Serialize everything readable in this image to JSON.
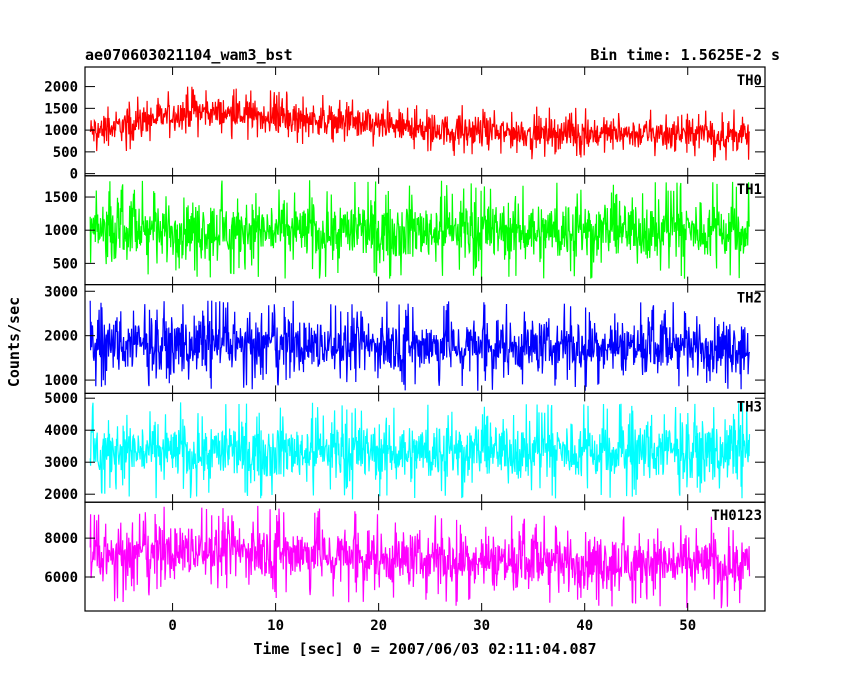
{
  "chart_data": {
    "type": "line",
    "title": "ae070603021104_wam3_bst",
    "bin_time_label": "Bin time: 1.5625E-2 s",
    "xlabel": "Time [sec] 0 = 2007/06/03 02:11:04.087",
    "ylabel": "Counts/sec",
    "xlim": [
      -8.5,
      57.5
    ],
    "x_data_range": [
      -8,
      56
    ],
    "x_ticks": [
      0,
      10,
      20,
      30,
      40,
      50
    ],
    "x_tick_labels": [
      "0",
      "10",
      "20",
      "30",
      "40",
      "50"
    ],
    "grid": false,
    "panels": [
      {
        "name": "TH0",
        "color": "#ff0000",
        "ylim": [
          -50,
          2450
        ],
        "y_ticks": [
          0,
          500,
          1000,
          1500,
          2000
        ],
        "y_tick_labels": [
          "0",
          "500",
          "1000",
          "1500",
          "2000"
        ],
        "trend": [
          [
            -8,
            950
          ],
          [
            -2,
            1250
          ],
          [
            2,
            1450
          ],
          [
            6,
            1350
          ],
          [
            10,
            1300
          ],
          [
            14,
            1250
          ],
          [
            20,
            1100
          ],
          [
            25,
            1020
          ],
          [
            30,
            950
          ],
          [
            40,
            930
          ],
          [
            50,
            900
          ],
          [
            56,
            880
          ]
        ],
        "noise_amplitude": 420
      },
      {
        "name": "TH1",
        "color": "#00ff00",
        "ylim": [
          180,
          1820
        ],
        "y_ticks": [
          500,
          1000,
          1500
        ],
        "y_tick_labels": [
          "500",
          "1000",
          "1500"
        ],
        "trend": [
          [
            -8,
            1000
          ],
          [
            56,
            1000
          ]
        ],
        "noise_amplitude": 520
      },
      {
        "name": "TH2",
        "color": "#0000ff",
        "ylim": [
          700,
          3150
        ],
        "y_ticks": [
          1000,
          2000,
          3000
        ],
        "y_tick_labels": [
          "1000",
          "2000",
          "3000"
        ],
        "trend": [
          [
            -8,
            1800
          ],
          [
            56,
            1750
          ]
        ],
        "noise_amplitude": 700
      },
      {
        "name": "TH3",
        "color": "#00ffff",
        "ylim": [
          1750,
          5150
        ],
        "y_ticks": [
          2000,
          3000,
          4000,
          5000
        ],
        "y_tick_labels": [
          "2000",
          "3000",
          "4000",
          "5000"
        ],
        "trend": [
          [
            -8,
            3350
          ],
          [
            56,
            3350
          ]
        ],
        "noise_amplitude": 1050
      },
      {
        "name": "TH0123",
        "color": "#ff00ff",
        "ylim": [
          4250,
          9850
        ],
        "y_ticks": [
          6000,
          8000
        ],
        "y_tick_labels": [
          "6000",
          "8000"
        ],
        "trend": [
          [
            -8,
            6900
          ],
          [
            2,
            7400
          ],
          [
            10,
            7300
          ],
          [
            20,
            7000
          ],
          [
            30,
            6850
          ],
          [
            40,
            6750
          ],
          [
            56,
            6700
          ]
        ],
        "noise_amplitude": 1650
      }
    ]
  }
}
